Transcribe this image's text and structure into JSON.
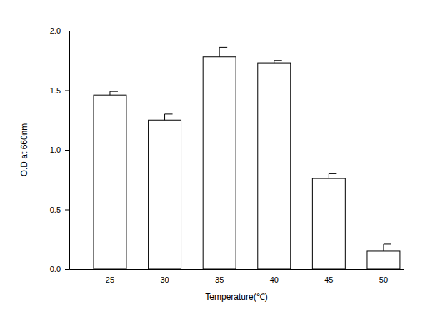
{
  "chart_data": {
    "type": "bar",
    "x_label": "Temperature(℃)",
    "y_label": "O.D at 660nm",
    "categories": [
      "25",
      "30",
      "35",
      "40",
      "45",
      "50"
    ],
    "values": [
      1.46,
      1.25,
      1.78,
      1.73,
      0.76,
      0.15
    ],
    "errors": [
      0.03,
      0.05,
      0.08,
      0.02,
      0.04,
      0.06
    ],
    "color": "#ffffff",
    "ylim": [
      0,
      2
    ],
    "yticks": [
      {
        "value": 0,
        "label": "0.0"
      },
      0.5,
      {
        "value": 1,
        "label": "1.0"
      },
      1.5,
      {
        "value": 2,
        "label": "2.0"
      }
    ],
    "grid": false
  }
}
